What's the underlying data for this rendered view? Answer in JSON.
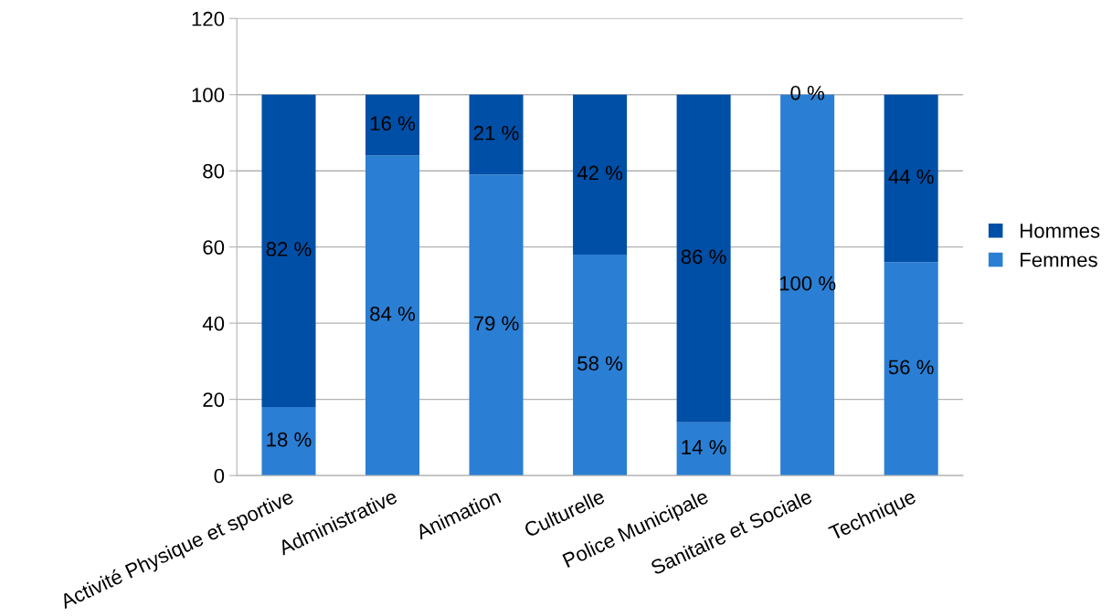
{
  "chart_data": {
    "type": "bar",
    "stacked": true,
    "categories": [
      "Activité Physique et sportive",
      "Administrative",
      "Animation",
      "Culturelle",
      "Police Municipale",
      "Sanitaire et Sociale",
      "Technique"
    ],
    "series": [
      {
        "name": "Femmes",
        "color": "#2a7fd4",
        "values": [
          18,
          84,
          79,
          58,
          14,
          100,
          56
        ],
        "value_labels": [
          "18 %",
          "84 %",
          "79 %",
          "58 %",
          "14 %",
          "100 %",
          "56 %"
        ]
      },
      {
        "name": "Hommes",
        "color": "#004fa6",
        "values": [
          82,
          16,
          21,
          42,
          86,
          0,
          44
        ],
        "value_labels": [
          "82 %",
          "16 %",
          "21 %",
          "42 %",
          "86 %",
          "0 %",
          "44 %"
        ]
      }
    ],
    "ylim": [
      0,
      120
    ],
    "yticks": [
      0,
      20,
      40,
      60,
      80,
      100,
      120
    ],
    "grid": "y",
    "legend": "right"
  }
}
